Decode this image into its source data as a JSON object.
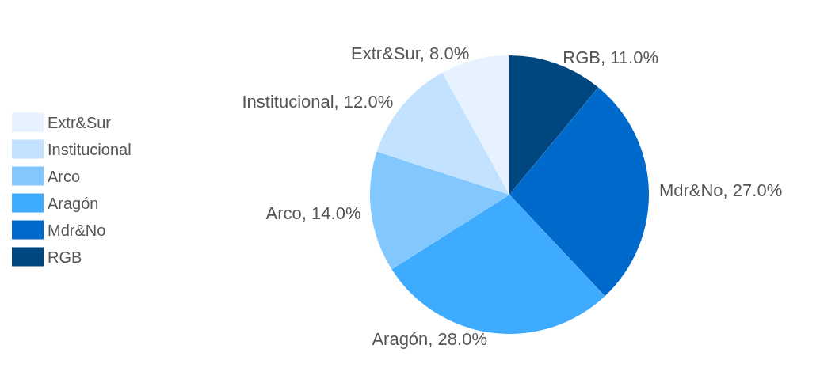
{
  "chart_data": {
    "type": "pie",
    "categories": [
      "RGB",
      "Mdr&No",
      "Aragón",
      "Arco",
      "Institucional",
      "Extr&Sur"
    ],
    "values": [
      11,
      27,
      28,
      14,
      12,
      8
    ],
    "value_labels": [
      "RGB, 11.0%",
      "Mdr&No, 27.0%",
      "Aragón, 28.0%",
      "Arco, 14.0%",
      "Institucional, 12.0%",
      "Extr&Sur, 8.0%"
    ],
    "colors": [
      "#00467f",
      "#0069cc",
      "#3fabff",
      "#82c8ff",
      "#c2e2ff",
      "#e6f2ff"
    ],
    "legend": "left"
  }
}
